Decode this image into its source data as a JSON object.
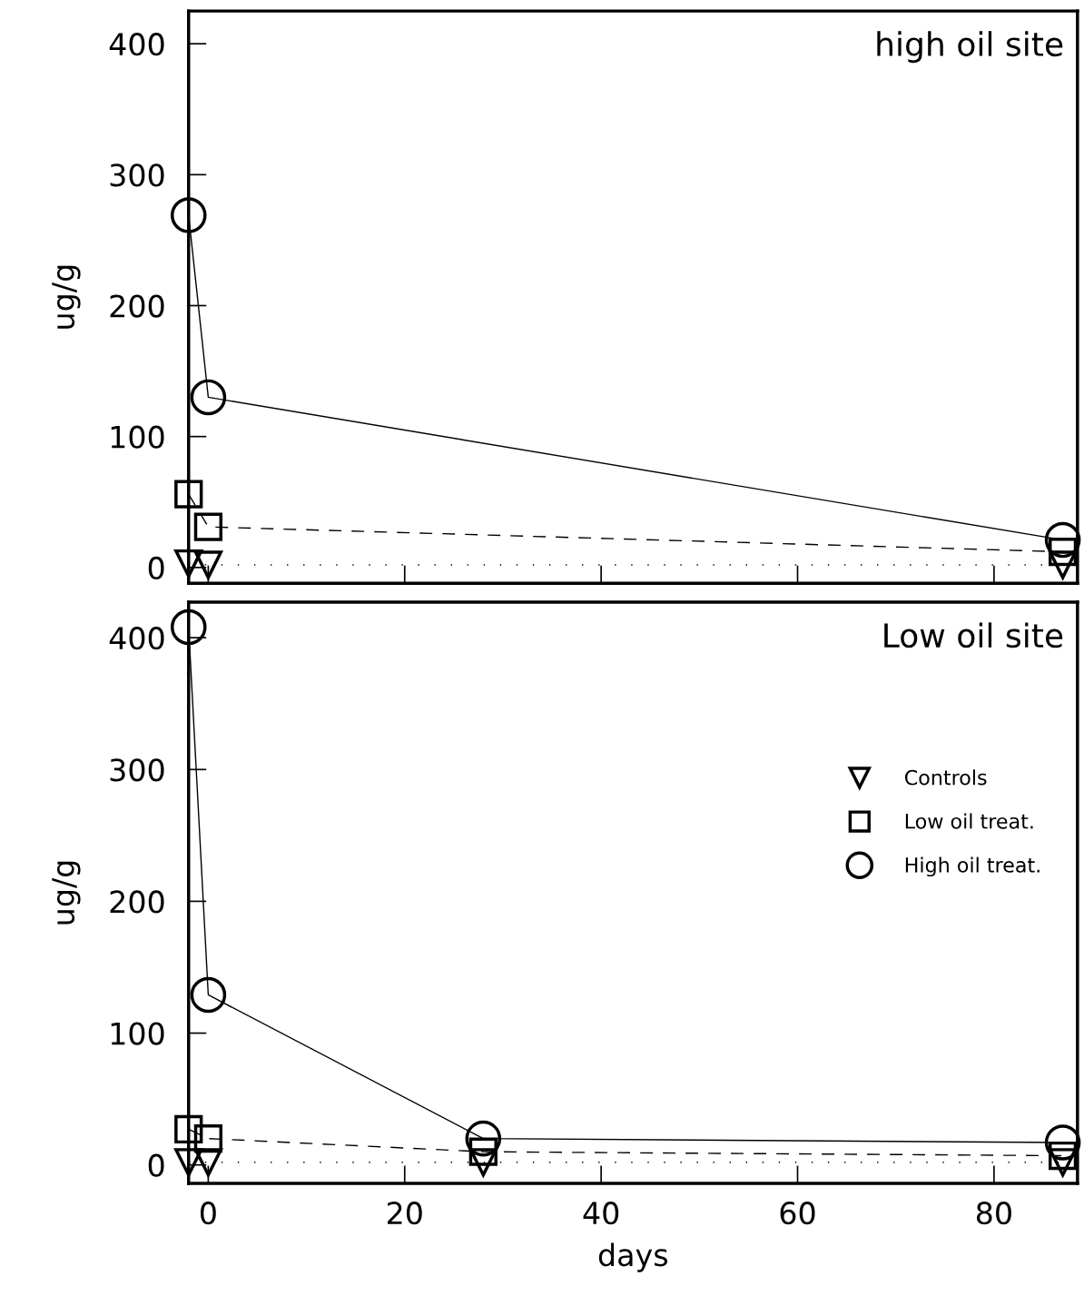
{
  "chart_data": [
    {
      "type": "line",
      "title": "high oil site",
      "ylabel": "ug/g",
      "xlim": [
        -2,
        88.5
      ],
      "ylim": [
        -12,
        425
      ],
      "xticks": [
        0,
        20,
        40,
        60,
        80
      ],
      "yticks": [
        0,
        100,
        200,
        300,
        400
      ],
      "tick_labels": "y",
      "grid": false,
      "legend": false,
      "series": [
        {
          "color": "#000000",
          "marker": "triangle",
          "line_style": "dotted",
          "x": [
            -2,
            0,
            87
          ],
          "values": [
            3,
            2,
            2
          ]
        },
        {
          "color": "#000000",
          "marker": "square",
          "line_style": "dashed",
          "x": [
            -2,
            0,
            87
          ],
          "values": [
            56,
            31,
            12
          ]
        },
        {
          "color": "#000000",
          "marker": "circle",
          "line_style": "solid",
          "x": [
            -2,
            0,
            87
          ],
          "values": [
            269,
            130,
            21
          ]
        }
      ]
    },
    {
      "type": "line",
      "title": "Low oil site",
      "xlabel": "days",
      "ylabel": "ug/g",
      "xlim": [
        -2,
        88.5
      ],
      "ylim": [
        -14,
        427
      ],
      "xticks": [
        0,
        20,
        40,
        60,
        80
      ],
      "yticks": [
        0,
        100,
        200,
        300,
        400
      ],
      "grid": false,
      "legend": "right",
      "series": [
        {
          "name": "Controls",
          "color": "#000000",
          "marker": "triangle",
          "line_style": "dotted",
          "x": [
            -2,
            0,
            28,
            87
          ],
          "values": [
            2,
            2,
            2,
            2
          ]
        },
        {
          "name": "Low oil treat.",
          "color": "#000000",
          "marker": "square",
          "line_style": "dashed",
          "x": [
            -2,
            0,
            28,
            87
          ],
          "values": [
            27,
            20,
            10,
            7
          ]
        },
        {
          "name": "High oil treat.",
          "color": "#000000",
          "marker": "circle",
          "line_style": "solid",
          "x": [
            -2,
            0,
            28,
            87
          ],
          "values": [
            408,
            129,
            20,
            17
          ]
        }
      ]
    }
  ]
}
